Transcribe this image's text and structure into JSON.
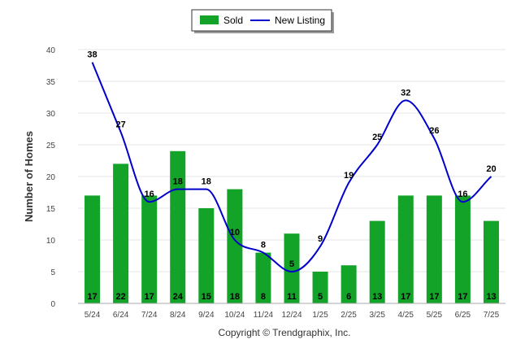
{
  "chart_data": {
    "type": "bar",
    "categories": [
      "5/24",
      "6/24",
      "7/24",
      "8/24",
      "9/24",
      "10/24",
      "11/24",
      "12/24",
      "1/25",
      "2/25",
      "3/25",
      "4/25",
      "5/25",
      "6/25",
      "7/25"
    ],
    "series": [
      {
        "name": "Sold",
        "type": "bar",
        "color": "#13a329",
        "values": [
          17,
          22,
          17,
          24,
          15,
          18,
          8,
          11,
          5,
          6,
          13,
          17,
          17,
          17,
          13
        ]
      },
      {
        "name": "New Listing",
        "type": "line",
        "color": "#0000cc",
        "values": [
          38,
          27,
          16,
          18,
          18,
          10,
          8,
          5,
          9,
          19,
          25,
          32,
          26,
          16,
          20
        ]
      }
    ],
    "ylabel": "Number of Homes",
    "ylim": [
      0,
      40
    ],
    "yticks": [
      0,
      5,
      10,
      15,
      20,
      25,
      30,
      35,
      40
    ],
    "grid": true,
    "legend_position": "top-center"
  },
  "footer": {
    "copyright": "Copyright © Trendgraphix, Inc."
  }
}
